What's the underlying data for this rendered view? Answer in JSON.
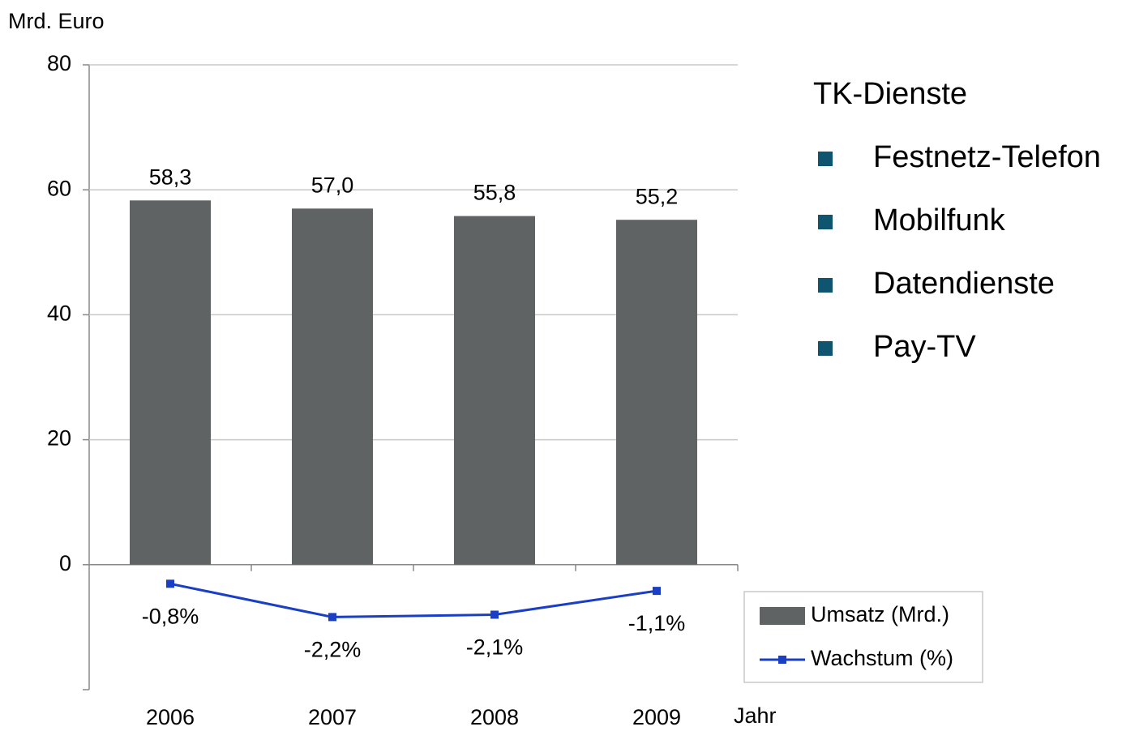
{
  "chart_data": {
    "type": "bar_line",
    "y_axis_label": "Mrd. Euro",
    "x_axis_label": "Jahr",
    "categories": [
      "2006",
      "2007",
      "2008",
      "2009"
    ],
    "series": [
      {
        "name": "Umsatz (Mrd.)",
        "color": "#5f6364",
        "type": "bar",
        "values": [
          58.3,
          57.0,
          55.8,
          55.2
        ],
        "value_labels": [
          "58,3",
          "57,0",
          "55,8",
          "55,2"
        ]
      },
      {
        "name": "Wachstum (%)",
        "color": "#1a3fc4",
        "type": "line",
        "axis": "y2",
        "values": [
          -0.8,
          -2.2,
          -2.1,
          -1.1
        ],
        "value_labels": [
          "-0,8%",
          "-2,2%",
          "-2,1%",
          "-1,1%"
        ]
      }
    ],
    "ylim": [
      -20,
      80
    ],
    "yticks": [
      0,
      20,
      40,
      60,
      80
    ],
    "y2lim": [
      -5.25,
      21
    ],
    "grid": true,
    "annotations": {
      "title": "TK-Dienste",
      "items": [
        "Festnetz-Telefon",
        "Mobilfunk",
        "Datendienste",
        "Pay-TV"
      ],
      "bullet_color": "#0f5570"
    }
  }
}
